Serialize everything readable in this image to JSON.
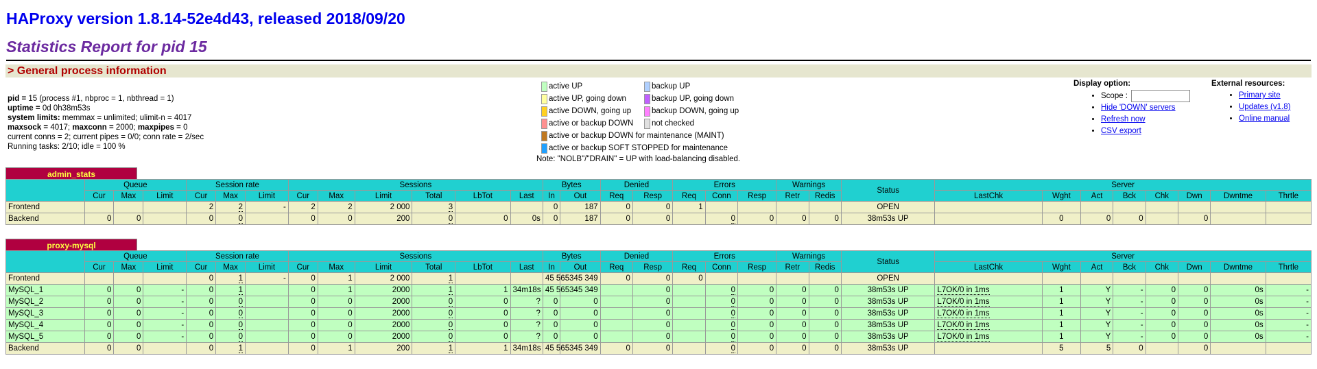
{
  "header": {
    "title": "HAProxy version 1.8.14-52e4d43, released 2018/09/20",
    "subtitle": "Statistics Report for pid 15",
    "section": "> General process information"
  },
  "process_info": [
    [
      {
        "t": "pid = ",
        "b": true
      },
      {
        "t": "15 (process #1, nbproc = 1, nbthread = 1)"
      }
    ],
    [
      {
        "t": "uptime = ",
        "b": true
      },
      {
        "t": "0d 0h38m53s"
      }
    ],
    [
      {
        "t": "system limits:",
        "b": true
      },
      {
        "t": " memmax = unlimited; ulimit-n = 4017"
      }
    ],
    [
      {
        "t": "maxsock = ",
        "b": true
      },
      {
        "t": "4017; "
      },
      {
        "t": "maxconn = ",
        "b": true
      },
      {
        "t": "2000; "
      },
      {
        "t": "maxpipes = ",
        "b": true
      },
      {
        "t": "0"
      }
    ],
    [
      {
        "t": "current conns = 2; current pipes = 0/0; conn rate = 2/sec"
      }
    ],
    [
      {
        "t": "Running tasks: 2/10; idle = 100 %"
      }
    ]
  ],
  "legend": {
    "col1": [
      {
        "label": "active UP",
        "color": "#c0ffc0"
      },
      {
        "label": "active UP, going down",
        "color": "#ffffa0"
      },
      {
        "label": "active DOWN, going up",
        "color": "#ffd020"
      },
      {
        "label": "active or backup DOWN",
        "color": "#ff9090"
      },
      {
        "label": "active or backup DOWN for maintenance (MAINT)",
        "color": "#c07820"
      },
      {
        "label": "active or backup SOFT STOPPED for maintenance",
        "color": "#20a0ff"
      }
    ],
    "col2": [
      {
        "label": "backup UP",
        "color": "#b0d0ff"
      },
      {
        "label": "backup UP, going down",
        "color": "#c060ff"
      },
      {
        "label": "backup DOWN, going up",
        "color": "#ff80ff"
      },
      {
        "label": "not checked",
        "color": "#e0e0e0"
      }
    ],
    "note": "Note: \"NOLB\"/\"DRAIN\" = UP with load-balancing disabled."
  },
  "display_option": {
    "title": "Display option:",
    "scope_label": "Scope :",
    "scope_value": "",
    "links": [
      "Hide 'DOWN' servers",
      "Refresh now",
      "CSV export"
    ]
  },
  "external_resources": {
    "title": "External resources:",
    "links": [
      "Primary site",
      "Updates (v1.8)",
      "Online manual"
    ]
  },
  "colors": {
    "header_bg": "#20d0d0",
    "frontend_bg": "#f0f0c8",
    "server_up_bg": "#c0ffc0",
    "proxy_name_bg": "#b00040",
    "proxy_name_fg": "#ffff40"
  },
  "table_headers": {
    "groups": [
      "Queue",
      "Session rate",
      "Sessions",
      "Bytes",
      "Denied",
      "Errors",
      "Warnings",
      "Server"
    ],
    "cols": [
      "Cur",
      "Max",
      "Limit",
      "Cur",
      "Max",
      "Limit",
      "Cur",
      "Max",
      "Limit",
      "Total",
      "LbTot",
      "Last",
      "In",
      "Out",
      "Req",
      "Resp",
      "Req",
      "Conn",
      "Resp",
      "Retr",
      "Redis",
      "Status",
      "LastChk",
      "Wght",
      "Act",
      "Bck",
      "Chk",
      "Dwn",
      "Dwntme",
      "Thrtle"
    ]
  },
  "proxies": [
    {
      "name": "admin_stats",
      "rows": [
        {
          "type": "fe",
          "cells": [
            "Frontend",
            "",
            "",
            "",
            "2",
            "2",
            "-",
            "2",
            "2",
            "2 000",
            "3",
            "",
            "",
            "0",
            "187",
            "0",
            "0",
            "1",
            "",
            "",
            "",
            "",
            "OPEN",
            "",
            "",
            "",
            "",
            "",
            "",
            "",
            ""
          ]
        },
        {
          "type": "be",
          "cells": [
            "Backend",
            "0",
            "0",
            "",
            "0",
            "0",
            "",
            "0",
            "0",
            "200",
            "0",
            "0",
            "0s",
            "0",
            "187",
            "0",
            "0",
            "",
            "0",
            "0",
            "0",
            "0",
            "38m53s UP",
            "",
            "0",
            "0",
            "0",
            "",
            "0",
            "",
            ""
          ]
        }
      ]
    },
    {
      "name": "proxy-mysql",
      "rows": [
        {
          "type": "fe",
          "cells": [
            "Frontend",
            "",
            "",
            "",
            "0",
            "1",
            "-",
            "0",
            "1",
            "2 000",
            "1",
            "",
            "",
            "45 565",
            "345 349",
            "0",
            "0",
            "0",
            "",
            "",
            "",
            "",
            "OPEN",
            "",
            "",
            "",
            "",
            "",
            "",
            "",
            ""
          ]
        },
        {
          "type": "up",
          "cells": [
            "MySQL_1",
            "0",
            "0",
            "-",
            "0",
            "1",
            "",
            "0",
            "1",
            "2000",
            "1",
            "1",
            "34m18s",
            "45 565",
            "345 349",
            "",
            "0",
            "",
            "0",
            "0",
            "0",
            "0",
            "38m53s UP",
            "L7OK/0 in 1ms",
            "1",
            "Y",
            "-",
            "0",
            "0",
            "0s",
            "-"
          ]
        },
        {
          "type": "up",
          "cells": [
            "MySQL_2",
            "0",
            "0",
            "-",
            "0",
            "0",
            "",
            "0",
            "0",
            "2000",
            "0",
            "0",
            "?",
            "0",
            "0",
            "",
            "0",
            "",
            "0",
            "0",
            "0",
            "0",
            "38m53s UP",
            "L7OK/0 in 1ms",
            "1",
            "Y",
            "-",
            "0",
            "0",
            "0s",
            "-"
          ]
        },
        {
          "type": "up",
          "cells": [
            "MySQL_3",
            "0",
            "0",
            "-",
            "0",
            "0",
            "",
            "0",
            "0",
            "2000",
            "0",
            "0",
            "?",
            "0",
            "0",
            "",
            "0",
            "",
            "0",
            "0",
            "0",
            "0",
            "38m53s UP",
            "L7OK/0 in 1ms",
            "1",
            "Y",
            "-",
            "0",
            "0",
            "0s",
            "-"
          ]
        },
        {
          "type": "up",
          "cells": [
            "MySQL_4",
            "0",
            "0",
            "-",
            "0",
            "0",
            "",
            "0",
            "0",
            "2000",
            "0",
            "0",
            "?",
            "0",
            "0",
            "",
            "0",
            "",
            "0",
            "0",
            "0",
            "0",
            "38m53s UP",
            "L7OK/0 in 1ms",
            "1",
            "Y",
            "-",
            "0",
            "0",
            "0s",
            "-"
          ]
        },
        {
          "type": "up",
          "cells": [
            "MySQL_5",
            "0",
            "0",
            "-",
            "0",
            "0",
            "",
            "0",
            "0",
            "2000",
            "0",
            "0",
            "?",
            "0",
            "0",
            "",
            "0",
            "",
            "0",
            "0",
            "0",
            "0",
            "38m53s UP",
            "L7OK/0 in 1ms",
            "1",
            "Y",
            "-",
            "0",
            "0",
            "0s",
            "-"
          ]
        },
        {
          "type": "be",
          "cells": [
            "Backend",
            "0",
            "0",
            "",
            "0",
            "1",
            "",
            "0",
            "1",
            "200",
            "1",
            "1",
            "34m18s",
            "45 565",
            "345 349",
            "0",
            "0",
            "",
            "0",
            "0",
            "0",
            "0",
            "38m53s UP",
            "",
            "5",
            "5",
            "0",
            "",
            "0",
            "",
            ""
          ]
        }
      ]
    }
  ]
}
